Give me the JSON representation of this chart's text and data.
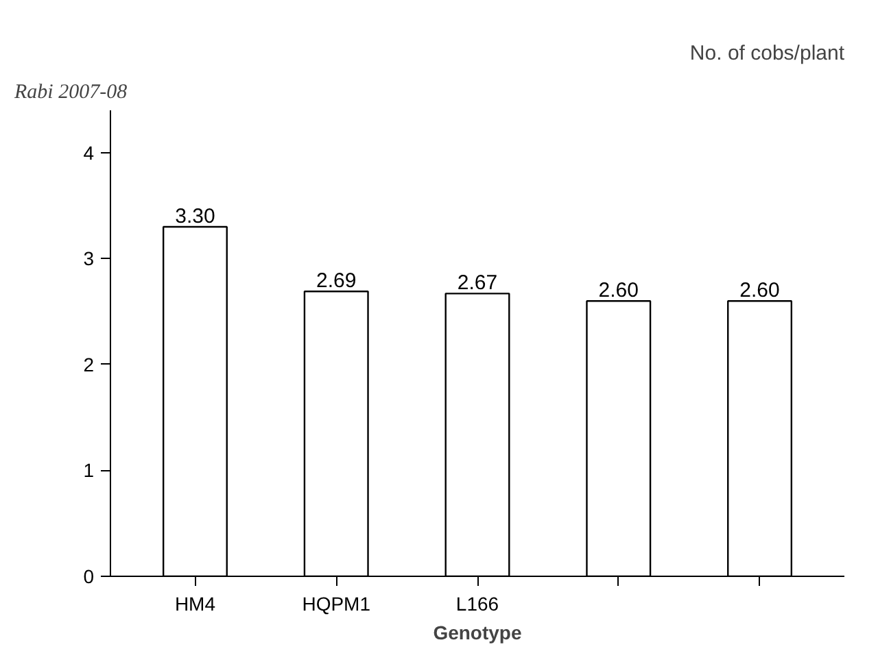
{
  "chart_data": {
    "type": "bar",
    "title": "No. of cobs/plant",
    "xlabel": "Genotype",
    "annotations": [
      "Rabi 2007-08"
    ],
    "categories": [
      "HM4",
      "HQPM1",
      "L166",
      null,
      null
    ],
    "values": [
      3.3,
      2.69,
      2.67,
      2.6,
      2.6
    ],
    "value_labels": [
      "3.30",
      "2.69",
      "2.67",
      "2.60",
      "2.60"
    ],
    "color": "#ffffff",
    "ylim": [
      0,
      4.4
    ],
    "yticks": [
      0,
      1,
      2,
      3,
      4
    ],
    "grid": false
  }
}
